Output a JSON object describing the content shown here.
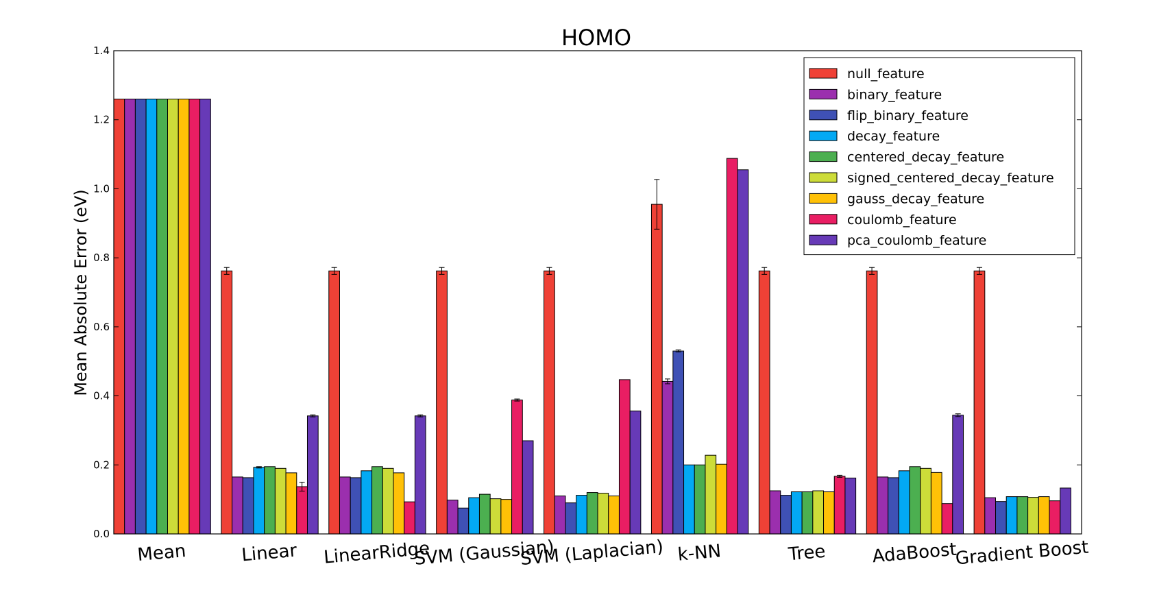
{
  "chart_data": {
    "type": "bar",
    "title": "HOMO",
    "ylabel": "Mean Absolute Error (eV)",
    "xlabel": "",
    "ylim": [
      0.0,
      1.4
    ],
    "yticks": [
      "0.0",
      "0.2",
      "0.4",
      "0.6",
      "0.8",
      "1.0",
      "1.2",
      "1.4"
    ],
    "legend_position": "top-right",
    "grid": false,
    "categories": [
      "Mean",
      "Linear",
      "LinearRidge",
      "SVM (Gaussian)",
      "SVM (Laplacian)",
      "k-NN",
      "Tree",
      "AdaBoost",
      "Gradient Boost"
    ],
    "series": [
      {
        "name": "null_feature",
        "color": "#ef4136",
        "values": [
          1.26,
          0.762,
          0.762,
          0.762,
          0.762,
          0.955,
          0.762,
          0.762,
          0.762
        ],
        "errors": [
          0,
          0.01,
          0.01,
          0.01,
          0.01,
          0.072,
          0.01,
          0.01,
          0.01
        ]
      },
      {
        "name": "binary_feature",
        "color": "#9b2fae",
        "values": [
          1.26,
          0.165,
          0.165,
          0.098,
          0.11,
          0.442,
          0.125,
          0.165,
          0.105
        ],
        "errors": [
          0,
          0,
          0,
          0,
          0,
          0.007,
          0,
          0,
          0
        ]
      },
      {
        "name": "flip_binary_feature",
        "color": "#3f51b5",
        "values": [
          1.26,
          0.163,
          0.163,
          0.075,
          0.09,
          0.53,
          0.112,
          0.163,
          0.094
        ],
        "errors": [
          0,
          0,
          0,
          0,
          0,
          0.003,
          0,
          0,
          0
        ]
      },
      {
        "name": "decay_feature",
        "color": "#03a9f4",
        "values": [
          1.26,
          0.193,
          0.183,
          0.105,
          0.112,
          0.2,
          0.122,
          0.183,
          0.108
        ],
        "errors": [
          0,
          0.002,
          0,
          0,
          0,
          0,
          0,
          0,
          0
        ]
      },
      {
        "name": "centered_decay_feature",
        "color": "#4caf50",
        "values": [
          1.26,
          0.195,
          0.195,
          0.115,
          0.12,
          0.2,
          0.122,
          0.195,
          0.108
        ],
        "errors": [
          0,
          0,
          0,
          0,
          0,
          0,
          0,
          0,
          0
        ]
      },
      {
        "name": "signed_centered_decay_feature",
        "color": "#cddc39",
        "values": [
          1.26,
          0.19,
          0.19,
          0.102,
          0.118,
          0.228,
          0.125,
          0.19,
          0.106
        ],
        "errors": [
          0,
          0,
          0,
          0,
          0,
          0,
          0,
          0,
          0
        ]
      },
      {
        "name": "gauss_decay_feature",
        "color": "#ffc107",
        "values": [
          1.26,
          0.177,
          0.177,
          0.1,
          0.11,
          0.202,
          0.122,
          0.178,
          0.108
        ],
        "errors": [
          0,
          0,
          0,
          0,
          0,
          0,
          0,
          0,
          0
        ]
      },
      {
        "name": "coulomb_feature",
        "color": "#e91e63",
        "values": [
          1.26,
          0.137,
          0.093,
          0.388,
          0.447,
          1.088,
          0.167,
          0.088,
          0.096
        ],
        "errors": [
          0,
          0.013,
          0,
          0.003,
          0,
          0,
          0.003,
          0,
          0
        ]
      },
      {
        "name": "pca_coulomb_feature",
        "color": "#673ab7",
        "values": [
          1.26,
          0.342,
          0.342,
          0.27,
          0.356,
          1.055,
          0.162,
          0.344,
          0.133
        ],
        "errors": [
          0,
          0.003,
          0.003,
          0,
          0,
          0,
          0,
          0.004,
          0
        ]
      }
    ]
  }
}
